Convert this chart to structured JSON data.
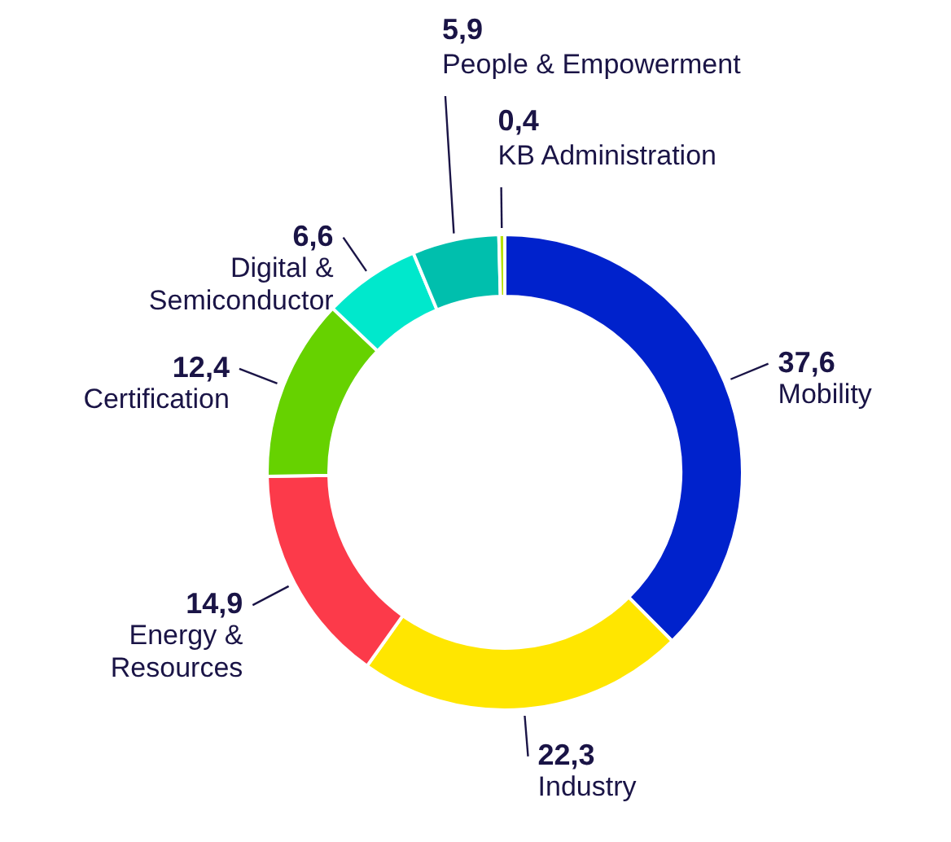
{
  "chart_data": {
    "type": "donut",
    "categories": [
      "Mobility",
      "Industry",
      "Energy & Resources",
      "Certification",
      "Digital & Semiconductor",
      "People & Empowerment",
      "KB Administration"
    ],
    "values": [
      37.6,
      22.3,
      14.9,
      12.4,
      6.6,
      5.9,
      0.4
    ],
    "value_labels": [
      "37,6",
      "22,3",
      "14,9",
      "12,4",
      "6,6",
      "5,9",
      "0,4"
    ],
    "colors": [
      "#0022cc",
      "#ffe600",
      "#fc3a4a",
      "#66d200",
      "#00e8cc",
      "#00bfad",
      "#b8e000"
    ]
  }
}
